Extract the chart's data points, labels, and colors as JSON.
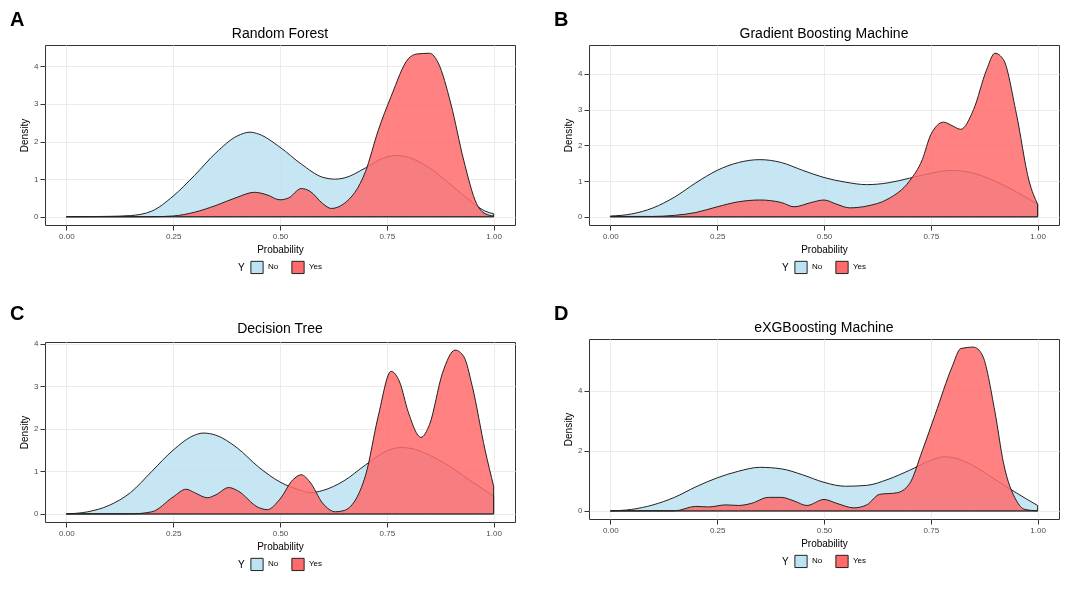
{
  "chart_data": [
    {
      "type": "area",
      "title": "Random Forest",
      "xlabel": "Probability",
      "ylabel": "Density",
      "legend_title": "Y",
      "legend": "bottom",
      "grid": true,
      "annotations": [
        "A"
      ],
      "xlim": [
        -0.05,
        1.05
      ],
      "xticks": [
        {
          "value": 0,
          "label": "0.00"
        },
        {
          "value": 0.25,
          "label": "0.25"
        },
        {
          "value": 0.5,
          "label": "0.50"
        },
        {
          "value": 0.75,
          "label": "0.75"
        },
        {
          "value": 1,
          "label": "1.00"
        }
      ],
      "ylim": [
        -0.22,
        4.57
      ],
      "yticks": [
        0,
        1,
        2,
        3,
        4
      ],
      "series": [
        {
          "name": "No",
          "color": "#bde2f1",
          "x": [
            0,
            0.1,
            0.15,
            0.2,
            0.25,
            0.3,
            0.35,
            0.4,
            0.43,
            0.45,
            0.5,
            0.55,
            0.6,
            0.63,
            0.65,
            0.7,
            0.73,
            0.77,
            0.8,
            0.85,
            0.9,
            0.95,
            0.98,
            1.0
          ],
          "values": [
            0,
            0.01,
            0.03,
            0.15,
            0.55,
            1.1,
            1.7,
            2.15,
            2.25,
            2.2,
            1.85,
            1.4,
            1.05,
            1.0,
            1.03,
            1.3,
            1.5,
            1.63,
            1.58,
            1.3,
            0.85,
            0.38,
            0.15,
            0.08
          ]
        },
        {
          "name": "Yes",
          "color": "#ff6b6b",
          "x": [
            0,
            0.2,
            0.25,
            0.3,
            0.35,
            0.4,
            0.44,
            0.47,
            0.5,
            0.52,
            0.55,
            0.57,
            0.6,
            0.62,
            0.65,
            0.7,
            0.73,
            0.76,
            0.8,
            0.82,
            0.85,
            0.87,
            0.9,
            0.93,
            0.96,
            0.98,
            1.0
          ],
          "values": [
            0,
            0,
            0.02,
            0.12,
            0.3,
            0.52,
            0.65,
            0.58,
            0.45,
            0.5,
            0.75,
            0.68,
            0.35,
            0.22,
            0.35,
            1.2,
            2.3,
            3.2,
            4.2,
            4.33,
            4.35,
            4.1,
            3.0,
            1.5,
            0.35,
            0.08,
            0.02
          ]
        }
      ]
    },
    {
      "type": "area",
      "title": "Gradient Boosting Machine",
      "xlabel": "Probability",
      "ylabel": "Density",
      "legend_title": "Y",
      "legend": "bottom",
      "grid": true,
      "annotations": [
        "B"
      ],
      "xlim": [
        -0.05,
        1.05
      ],
      "xticks": [
        {
          "value": 0,
          "label": "0.00"
        },
        {
          "value": 0.25,
          "label": "0.25"
        },
        {
          "value": 0.5,
          "label": "0.50"
        },
        {
          "value": 0.75,
          "label": "0.75"
        },
        {
          "value": 1,
          "label": "1.00"
        }
      ],
      "ylim": [
        -0.23,
        4.81
      ],
      "yticks": [
        0,
        1,
        2,
        3,
        4
      ],
      "series": [
        {
          "name": "No",
          "color": "#bde2f1",
          "x": [
            0,
            0.05,
            0.1,
            0.15,
            0.2,
            0.25,
            0.3,
            0.35,
            0.4,
            0.45,
            0.5,
            0.55,
            0.6,
            0.65,
            0.7,
            0.75,
            0.8,
            0.85,
            0.9,
            0.95,
            1.0
          ],
          "values": [
            0.02,
            0.08,
            0.25,
            0.55,
            0.95,
            1.3,
            1.52,
            1.6,
            1.52,
            1.3,
            1.1,
            0.97,
            0.9,
            0.95,
            1.08,
            1.22,
            1.3,
            1.22,
            1.0,
            0.7,
            0.35
          ]
        },
        {
          "name": "Yes",
          "color": "#ff6b6b",
          "x": [
            0,
            0.1,
            0.15,
            0.2,
            0.25,
            0.3,
            0.35,
            0.4,
            0.43,
            0.47,
            0.5,
            0.53,
            0.56,
            0.6,
            0.65,
            0.7,
            0.73,
            0.75,
            0.78,
            0.8,
            0.82,
            0.85,
            0.88,
            0.9,
            0.92,
            0.95,
            0.98,
            1.0
          ],
          "values": [
            0.01,
            0.01,
            0.04,
            0.12,
            0.28,
            0.42,
            0.47,
            0.4,
            0.28,
            0.4,
            0.47,
            0.35,
            0.25,
            0.3,
            0.5,
            1.0,
            1.6,
            2.3,
            2.65,
            2.55,
            2.45,
            3.0,
            4.1,
            4.58,
            4.4,
            2.9,
            1.0,
            0.35
          ]
        }
      ]
    },
    {
      "type": "area",
      "title": "Decision Tree",
      "xlabel": "Probability",
      "ylabel": "Density",
      "legend_title": "Y",
      "legend": "bottom",
      "grid": true,
      "annotations": [
        "C"
      ],
      "xlim": [
        -0.05,
        1.05
      ],
      "xticks": [
        {
          "value": 0,
          "label": "0.00"
        },
        {
          "value": 0.25,
          "label": "0.25"
        },
        {
          "value": 0.5,
          "label": "0.50"
        },
        {
          "value": 0.75,
          "label": "0.75"
        },
        {
          "value": 1,
          "label": "1.00"
        }
      ],
      "ylim": [
        -0.19,
        4.04
      ],
      "yticks": [
        0,
        1,
        2,
        3,
        4
      ],
      "series": [
        {
          "name": "No",
          "color": "#bde2f1",
          "x": [
            0,
            0.05,
            0.1,
            0.15,
            0.2,
            0.25,
            0.3,
            0.32,
            0.35,
            0.4,
            0.45,
            0.5,
            0.55,
            0.57,
            0.6,
            0.65,
            0.7,
            0.75,
            0.78,
            0.8,
            0.85,
            0.9,
            0.95,
            1.0
          ],
          "values": [
            0,
            0.05,
            0.2,
            0.5,
            1.0,
            1.5,
            1.85,
            1.9,
            1.85,
            1.55,
            1.1,
            0.75,
            0.55,
            0.5,
            0.55,
            0.78,
            1.15,
            1.48,
            1.56,
            1.55,
            1.38,
            1.1,
            0.75,
            0.42
          ]
        },
        {
          "name": "Yes",
          "color": "#ff6b6b",
          "x": [
            0,
            0.15,
            0.2,
            0.25,
            0.28,
            0.3,
            0.33,
            0.35,
            0.38,
            0.4,
            0.45,
            0.47,
            0.5,
            0.53,
            0.55,
            0.57,
            0.6,
            0.63,
            0.65,
            0.7,
            0.73,
            0.76,
            0.78,
            0.8,
            0.83,
            0.85,
            0.88,
            0.91,
            0.93,
            0.95,
            0.98,
            1.0
          ],
          "values": [
            0,
            0,
            0.05,
            0.4,
            0.58,
            0.5,
            0.38,
            0.45,
            0.62,
            0.55,
            0.15,
            0.1,
            0.35,
            0.8,
            0.92,
            0.75,
            0.25,
            0.05,
            0.08,
            0.9,
            2.3,
            3.35,
            3.1,
            2.4,
            1.8,
            2.1,
            3.3,
            3.85,
            3.7,
            3.0,
            1.5,
            0.65
          ]
        }
      ]
    },
    {
      "type": "area",
      "title": "eXGBoosting Machine",
      "xlabel": "Probability",
      "ylabel": "Density",
      "legend_title": "Y",
      "legend": "bottom",
      "grid": true,
      "annotations": [
        "D"
      ],
      "xlim": [
        -0.05,
        1.05
      ],
      "xticks": [
        {
          "value": 0,
          "label": "0.00"
        },
        {
          "value": 0.25,
          "label": "0.25"
        },
        {
          "value": 0.5,
          "label": "0.50"
        },
        {
          "value": 0.75,
          "label": "0.75"
        },
        {
          "value": 1,
          "label": "1.00"
        }
      ],
      "ylim": [
        -0.27,
        5.72
      ],
      "yticks": [
        0,
        2,
        4
      ],
      "series": [
        {
          "name": "No",
          "color": "#bde2f1",
          "x": [
            0,
            0.05,
            0.1,
            0.15,
            0.2,
            0.25,
            0.3,
            0.35,
            0.4,
            0.45,
            0.5,
            0.55,
            0.6,
            0.65,
            0.7,
            0.75,
            0.78,
            0.8,
            0.85,
            0.9,
            0.95,
            1.0
          ],
          "values": [
            0,
            0.05,
            0.2,
            0.45,
            0.8,
            1.1,
            1.32,
            1.45,
            1.4,
            1.2,
            0.95,
            0.82,
            0.85,
            1.05,
            1.35,
            1.68,
            1.8,
            1.78,
            1.5,
            1.05,
            0.6,
            0.18
          ]
        },
        {
          "name": "Yes",
          "color": "#ff6b6b",
          "x": [
            0,
            0.15,
            0.2,
            0.23,
            0.27,
            0.3,
            0.33,
            0.37,
            0.4,
            0.43,
            0.46,
            0.5,
            0.53,
            0.57,
            0.6,
            0.63,
            0.67,
            0.7,
            0.73,
            0.76,
            0.8,
            0.82,
            0.85,
            0.87,
            0.9,
            0.92,
            0.95,
            0.97,
            1.0
          ],
          "values": [
            0,
            0,
            0.15,
            0.13,
            0.2,
            0.18,
            0.25,
            0.45,
            0.45,
            0.33,
            0.18,
            0.38,
            0.25,
            0.1,
            0.2,
            0.55,
            0.6,
            0.9,
            2.0,
            3.2,
            4.8,
            5.4,
            5.45,
            5.2,
            3.3,
            1.6,
            0.35,
            0.05,
            0
          ]
        }
      ]
    }
  ]
}
